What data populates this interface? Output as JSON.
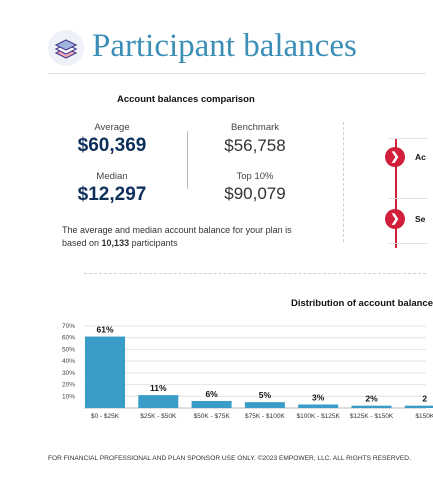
{
  "header": {
    "title": "Participant balances",
    "logo_icon": "stacked-layers-icon"
  },
  "comparison": {
    "title": "Account balances comparison",
    "average_label": "Average",
    "average_value": "$60,369",
    "median_label": "Median",
    "median_value": "$12,297",
    "benchmark_label": "Benchmark",
    "benchmark_value": "$56,758",
    "top10_label": "Top 10%",
    "top10_value": "$90,079",
    "note_prefix": "The average and median account balance for your plan is based on ",
    "note_count": "10,133",
    "note_suffix": " participants"
  },
  "timeline": {
    "items": [
      {
        "label": "Ac",
        "icon": "chevron-right-icon"
      },
      {
        "label": "Se",
        "icon": "chevron-right-icon"
      }
    ],
    "accent_color": "#d21f3c"
  },
  "chart_data": {
    "type": "bar",
    "title": "Distribution of account balance",
    "categories": [
      "$0 - $25K",
      "$25K - $50K",
      "$50K - $75K",
      "$75K - $100K",
      "$100K - $125K",
      "$125K - $150K",
      "$150K"
    ],
    "values": [
      61,
      11,
      6,
      5,
      3,
      2,
      2
    ],
    "data_labels": [
      "61%",
      "11%",
      "6%",
      "5%",
      "3%",
      "2%",
      "2"
    ],
    "y_ticks": [
      "10%",
      "20%",
      "30%",
      "40%",
      "50%",
      "60%",
      "70%"
    ],
    "ylim": [
      0,
      70
    ],
    "grid": true,
    "bar_color": "#3a9cc9",
    "xlabel": "",
    "ylabel": ""
  },
  "footer": {
    "text": "FOR FINANCIAL PROFESSIONAL AND PLAN SPONSOR USE ONLY. ©2023 EMPOWER, LLC. ALL RIGHTS RESERVED."
  }
}
